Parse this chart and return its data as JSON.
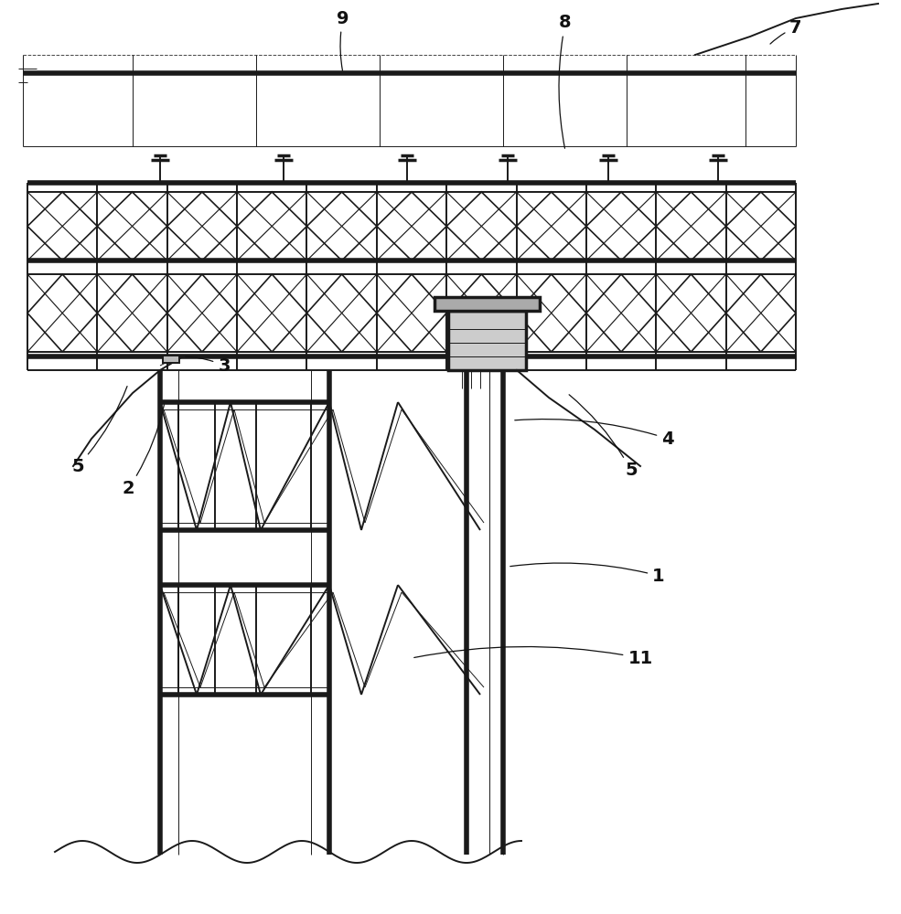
{
  "bg_color": "#ffffff",
  "lc": "#1a1a1a",
  "lw_thin": 0.7,
  "lw_med": 1.4,
  "lw_thick": 2.5,
  "lw_heavy": 4.0,
  "label_fontsize": 14,
  "figw": 9.85,
  "figh": 10.0,
  "dpi": 100
}
